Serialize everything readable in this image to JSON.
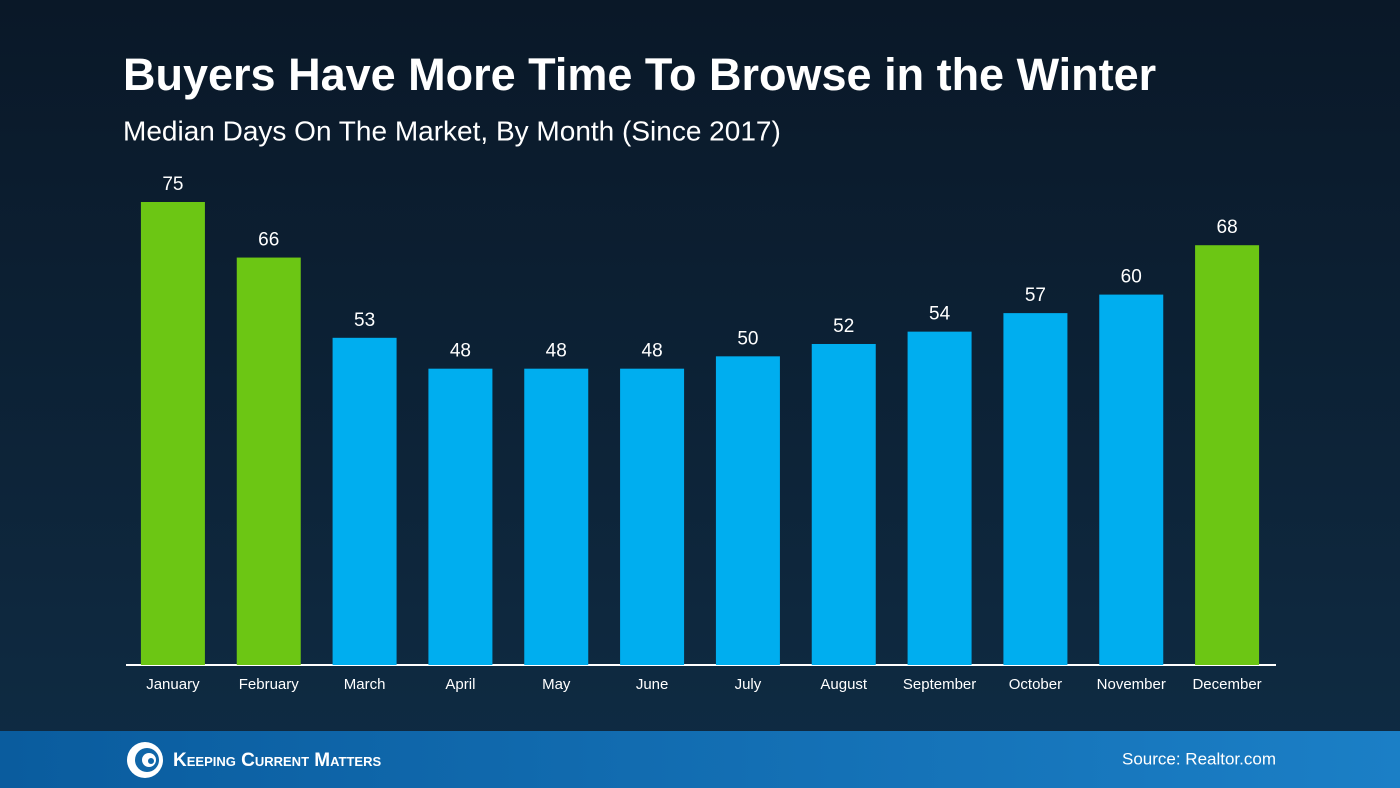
{
  "chart_data": {
    "type": "bar",
    "title": "Buyers Have More Time To Browse in the Winter",
    "subtitle": "Median Days On The Market, By Month (Since 2017)",
    "categories": [
      "January",
      "February",
      "March",
      "April",
      "May",
      "June",
      "July",
      "August",
      "September",
      "October",
      "November",
      "December"
    ],
    "values": [
      75,
      66,
      53,
      48,
      48,
      48,
      50,
      52,
      54,
      57,
      60,
      68
    ],
    "colors": [
      "#6cc614",
      "#6cc614",
      "#00aeef",
      "#00aeef",
      "#00aeef",
      "#00aeef",
      "#00aeef",
      "#00aeef",
      "#00aeef",
      "#00aeef",
      "#00aeef",
      "#6cc614"
    ]
  },
  "footer": {
    "brand": "Keeping Current Matters",
    "source": "Source: Realtor.com"
  }
}
